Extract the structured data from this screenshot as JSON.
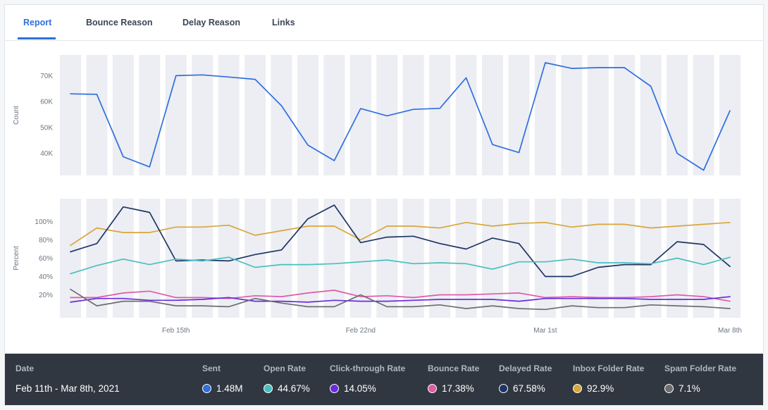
{
  "tabs": [
    {
      "label": "Report",
      "active": true
    },
    {
      "label": "Bounce Reason",
      "active": false
    },
    {
      "label": "Delay Reason",
      "active": false
    },
    {
      "label": "Links",
      "active": false
    }
  ],
  "chart_data": [
    {
      "type": "line",
      "ylabel": "Count",
      "yticks": [
        "70K",
        "60K",
        "50K",
        "40K"
      ],
      "ytick_values": [
        70000,
        60000,
        50000,
        40000
      ],
      "ylim": [
        31500,
        78000
      ],
      "x": [
        "Feb 11",
        "Feb 12",
        "Feb 13",
        "Feb 14",
        "Feb 15",
        "Feb 16",
        "Feb 17",
        "Feb 18",
        "Feb 19",
        "Feb 20",
        "Feb 21",
        "Feb 22",
        "Feb 23",
        "Feb 24",
        "Feb 25",
        "Feb 26",
        "Feb 27",
        "Feb 28",
        "Mar 1",
        "Mar 2",
        "Mar 3",
        "Mar 4",
        "Mar 5",
        "Mar 6",
        "Mar 7",
        "Mar 8"
      ],
      "series": [
        {
          "name": "Sent",
          "color": "#2f6fde",
          "values": [
            63000,
            62800,
            38700,
            34800,
            70000,
            70300,
            69500,
            68600,
            58400,
            43200,
            37200,
            57300,
            54500,
            57000,
            57400,
            69200,
            43400,
            40300,
            75000,
            72800,
            73100,
            73100,
            65900,
            40000,
            33500,
            56500
          ]
        }
      ]
    },
    {
      "type": "line",
      "ylabel": "Percent",
      "yticks": [
        "100%",
        "80%",
        "60%",
        "40%",
        "20%"
      ],
      "ytick_values": [
        100,
        80,
        60,
        40,
        20
      ],
      "ylim": [
        -5,
        125
      ],
      "xticks": [
        "Feb 15th",
        "Feb 22nd",
        "Mar 1st",
        "Mar 8th"
      ],
      "series": [
        {
          "name": "Inbox Folder Rate",
          "color": "#d9a63a",
          "values": [
            74,
            93,
            88,
            88,
            94,
            94,
            96,
            85,
            90,
            95,
            95,
            80,
            95,
            95,
            93,
            99,
            95,
            98,
            99,
            94,
            97,
            97,
            93,
            95,
            97,
            99
          ]
        },
        {
          "name": "Delayed Rate",
          "color": "#1e3566",
          "values": [
            67,
            76,
            116,
            110,
            57,
            58,
            57,
            64,
            69,
            103,
            118,
            77,
            83,
            84,
            76,
            70,
            82,
            76,
            40,
            40,
            50,
            53,
            53,
            78,
            75,
            51
          ]
        },
        {
          "name": "Open Rate",
          "color": "#48bfbf",
          "values": [
            43,
            52,
            59,
            53,
            59,
            57,
            61,
            50,
            53,
            53,
            54,
            56,
            58,
            54,
            55,
            54,
            48,
            56,
            56,
            59,
            55,
            55,
            54,
            60,
            53,
            61
          ]
        },
        {
          "name": "Bounce Rate",
          "color": "#e05aa7",
          "values": [
            17,
            17,
            22,
            24,
            17,
            17,
            16,
            19,
            18,
            22,
            25,
            18,
            19,
            17,
            20,
            20,
            21,
            22,
            17,
            18,
            17,
            17,
            18,
            20,
            18,
            13
          ]
        },
        {
          "name": "Click-through Rate",
          "color": "#6a2be0",
          "values": [
            12,
            16,
            16,
            14,
            14,
            15,
            17,
            13,
            13,
            12,
            14,
            13,
            13,
            14,
            15,
            15,
            15,
            13,
            16,
            16,
            16,
            16,
            15,
            15,
            15,
            18
          ]
        },
        {
          "name": "Spam Folder Rate",
          "color": "#6e6e6e",
          "values": [
            26,
            8,
            13,
            13,
            8,
            8,
            7,
            16,
            11,
            7,
            7,
            20,
            7,
            7,
            9,
            5,
            8,
            5,
            4,
            8,
            6,
            6,
            9,
            8,
            7,
            5
          ]
        }
      ]
    }
  ],
  "summary": {
    "date_label": "Date",
    "date_value": "Feb 11th - Mar 8th, 2021",
    "metrics": [
      {
        "label": "Sent",
        "value": "1.48M",
        "color": "#2f6fde"
      },
      {
        "label": "Open Rate",
        "value": "44.67%",
        "color": "#48bfbf"
      },
      {
        "label": "Click-through Rate",
        "value": "14.05%",
        "color": "#6a2be0"
      },
      {
        "label": "Bounce Rate",
        "value": "17.38%",
        "color": "#e05aa7"
      },
      {
        "label": "Delayed Rate",
        "value": "67.58%",
        "color": "#1e3566"
      },
      {
        "label": "Inbox Folder Rate",
        "value": "92.9%",
        "color": "#d9a63a"
      },
      {
        "label": "Spam Folder Rate",
        "value": "7.1%",
        "color": "#6e6e6e"
      }
    ]
  }
}
